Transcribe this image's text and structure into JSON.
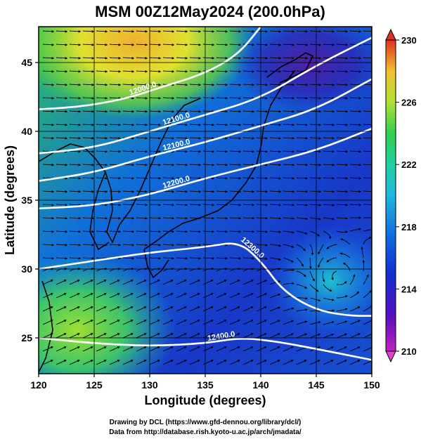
{
  "title": "MSM 00Z12May2024 (200.0hPa)",
  "xlabel": "Longitude (degrees)",
  "ylabel": "Latitude  (degrees)",
  "credit_line1": "Drawing by DCL (https://www.gfd-dennou.org/library/dcl/)",
  "credit_line2": "Data from http://database.rish.kyoto-u.ac.jp/arch/jmadata/",
  "chart_data": {
    "type": "map",
    "x_range": [
      120,
      150
    ],
    "y_range": [
      22.4,
      47.6
    ],
    "x_ticks": [
      "120",
      "125",
      "130",
      "135",
      "140",
      "145",
      "150"
    ],
    "y_ticks": [
      "25",
      "30",
      "35",
      "40",
      "45"
    ],
    "colorbar": {
      "range": [
        210,
        230
      ],
      "ticks": [
        "230",
        "226",
        "222",
        "218",
        "214",
        "210"
      ],
      "colors": [
        "#c020c0",
        "#4010c0",
        "#1040d0",
        "#1890e0",
        "#20c8c0",
        "#30d060",
        "#a0e030",
        "#f0e030",
        "#f0a030",
        "#e03020"
      ]
    },
    "contours": [
      {
        "label": "12000.0",
        "points": [
          [
            120,
            41.6
          ],
          [
            124,
            41.8
          ],
          [
            128,
            42.4
          ],
          [
            131,
            43.2
          ],
          [
            135,
            44.2
          ],
          [
            138,
            45.6
          ],
          [
            140,
            47.6
          ]
        ]
      },
      {
        "label": "12100.0",
        "points": [
          [
            120,
            38.4
          ],
          [
            125,
            38.8
          ],
          [
            130,
            40
          ],
          [
            135,
            41.2
          ],
          [
            140,
            42.4
          ],
          [
            145,
            44.8
          ],
          [
            150,
            46.8
          ]
        ]
      },
      {
        "label": "12100.0",
        "points": [
          [
            120,
            36.4
          ],
          [
            125,
            37
          ],
          [
            130,
            38.2
          ],
          [
            135,
            39.2
          ],
          [
            140,
            40.4
          ],
          [
            145,
            41.6
          ],
          [
            150,
            43.8
          ]
        ]
      },
      {
        "label": "12200.0",
        "points": [
          [
            120,
            34.4
          ],
          [
            125,
            34.6
          ],
          [
            130,
            35.4
          ],
          [
            135,
            36.6
          ],
          [
            140,
            37.6
          ],
          [
            145,
            38.6
          ],
          [
            150,
            40.2
          ]
        ]
      },
      {
        "label": "12300.0",
        "points": [
          [
            120,
            30
          ],
          [
            125,
            30.6
          ],
          [
            130,
            31.2
          ],
          [
            135,
            31.6
          ],
          [
            138,
            32
          ],
          [
            140,
            30.6
          ],
          [
            142,
            28.4
          ],
          [
            145,
            27
          ],
          [
            148,
            26.6
          ],
          [
            150,
            26.6
          ]
        ]
      },
      {
        "label": "12400.0",
        "points": [
          [
            120,
            25
          ],
          [
            125,
            24.6
          ],
          [
            130,
            24.4
          ],
          [
            135,
            24.6
          ],
          [
            138,
            25
          ],
          [
            141,
            24.8
          ],
          [
            145,
            24.2
          ],
          [
            150,
            23.4
          ]
        ]
      }
    ]
  }
}
